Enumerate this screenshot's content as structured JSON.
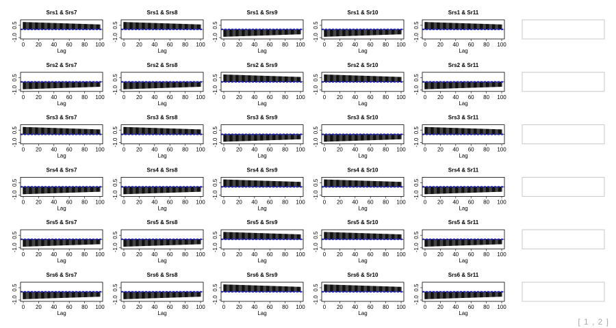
{
  "pager": {
    "indicator": "[ 1 , 2 ]"
  },
  "chart_data": {
    "type": "bar",
    "kind": "cross-correlation matrix",
    "xlabel": "Lag",
    "xlim": [
      0,
      100
    ],
    "ylim": [
      -1.0,
      1.0
    ],
    "x_ticks": [
      "0",
      "20",
      "40",
      "60",
      "80",
      "100"
    ],
    "y_ticks": [
      "0.5",
      "-1.0"
    ],
    "lags": 100,
    "ci_bound": 0.05,
    "ci_color": "#2020e0",
    "row_series": [
      "Srs1",
      "Srs2",
      "Srs3",
      "Srs4",
      "Srs5",
      "Srs6"
    ],
    "col_series": [
      "Srs7",
      "Srs8",
      "Srs9",
      "Sr10",
      "Sr11"
    ],
    "panels": [
      [
        {
          "title": "Srs1 & Srs7",
          "ccf_lag0": 0.9,
          "ccf_lag100": 0.6
        },
        {
          "title": "Srs1 & Srs8",
          "ccf_lag0": 0.9,
          "ccf_lag100": 0.6
        },
        {
          "title": "Srs1 & Srs9",
          "ccf_lag0": -0.9,
          "ccf_lag100": -0.6
        },
        {
          "title": "Srs1 & Sr10",
          "ccf_lag0": -0.9,
          "ccf_lag100": -0.6
        },
        {
          "title": "Srs1 & Sr11",
          "ccf_lag0": 0.9,
          "ccf_lag100": 0.6
        }
      ],
      [
        {
          "title": "Srs2 & Srs7",
          "ccf_lag0": -0.9,
          "ccf_lag100": -0.6
        },
        {
          "title": "Srs2 & Srs8",
          "ccf_lag0": -0.9,
          "ccf_lag100": -0.6
        },
        {
          "title": "Srs2 & Srs9",
          "ccf_lag0": 0.9,
          "ccf_lag100": 0.6
        },
        {
          "title": "Srs2 & Sr10",
          "ccf_lag0": 0.9,
          "ccf_lag100": 0.6
        },
        {
          "title": "Srs2 & Sr11",
          "ccf_lag0": -0.9,
          "ccf_lag100": -0.6
        }
      ],
      [
        {
          "title": "Srs3 & Srs7",
          "ccf_lag0": 0.9,
          "ccf_lag100": 0.6
        },
        {
          "title": "Srs3 & Srs8",
          "ccf_lag0": 0.9,
          "ccf_lag100": 0.6
        },
        {
          "title": "Srs3 & Srs9",
          "ccf_lag0": -0.9,
          "ccf_lag100": -0.6
        },
        {
          "title": "Srs3 & Sr10",
          "ccf_lag0": -0.9,
          "ccf_lag100": -0.6
        },
        {
          "title": "Srs3 & Sr11",
          "ccf_lag0": 0.9,
          "ccf_lag100": 0.6
        }
      ],
      [
        {
          "title": "Srs4 & Srs7",
          "ccf_lag0": -0.9,
          "ccf_lag100": -0.6
        },
        {
          "title": "Srs4 & Srs8",
          "ccf_lag0": -0.9,
          "ccf_lag100": -0.6
        },
        {
          "title": "Srs4 & Srs9",
          "ccf_lag0": 0.9,
          "ccf_lag100": 0.6
        },
        {
          "title": "Srs4 & Sr10",
          "ccf_lag0": 0.9,
          "ccf_lag100": 0.6
        },
        {
          "title": "Srs4 & Sr11",
          "ccf_lag0": -0.9,
          "ccf_lag100": -0.6
        }
      ],
      [
        {
          "title": "Srs5 & Srs7",
          "ccf_lag0": -0.9,
          "ccf_lag100": -0.6
        },
        {
          "title": "Srs5 & Srs8",
          "ccf_lag0": -0.9,
          "ccf_lag100": -0.6
        },
        {
          "title": "Srs5 & Srs9",
          "ccf_lag0": 0.9,
          "ccf_lag100": 0.6
        },
        {
          "title": "Srs5 & Sr10",
          "ccf_lag0": 0.9,
          "ccf_lag100": 0.6
        },
        {
          "title": "Srs5 & Sr11",
          "ccf_lag0": -0.9,
          "ccf_lag100": -0.6
        }
      ],
      [
        {
          "title": "Srs6 & Srs7",
          "ccf_lag0": -0.9,
          "ccf_lag100": -0.6
        },
        {
          "title": "Srs6 & Srs8",
          "ccf_lag0": -0.9,
          "ccf_lag100": -0.6
        },
        {
          "title": "Srs6 & Srs9",
          "ccf_lag0": 0.9,
          "ccf_lag100": 0.6
        },
        {
          "title": "Srs6 & Sr10",
          "ccf_lag0": 0.9,
          "ccf_lag100": 0.6
        },
        {
          "title": "Srs6 & Sr11",
          "ccf_lag0": -0.9,
          "ccf_lag100": -0.6
        }
      ]
    ]
  }
}
